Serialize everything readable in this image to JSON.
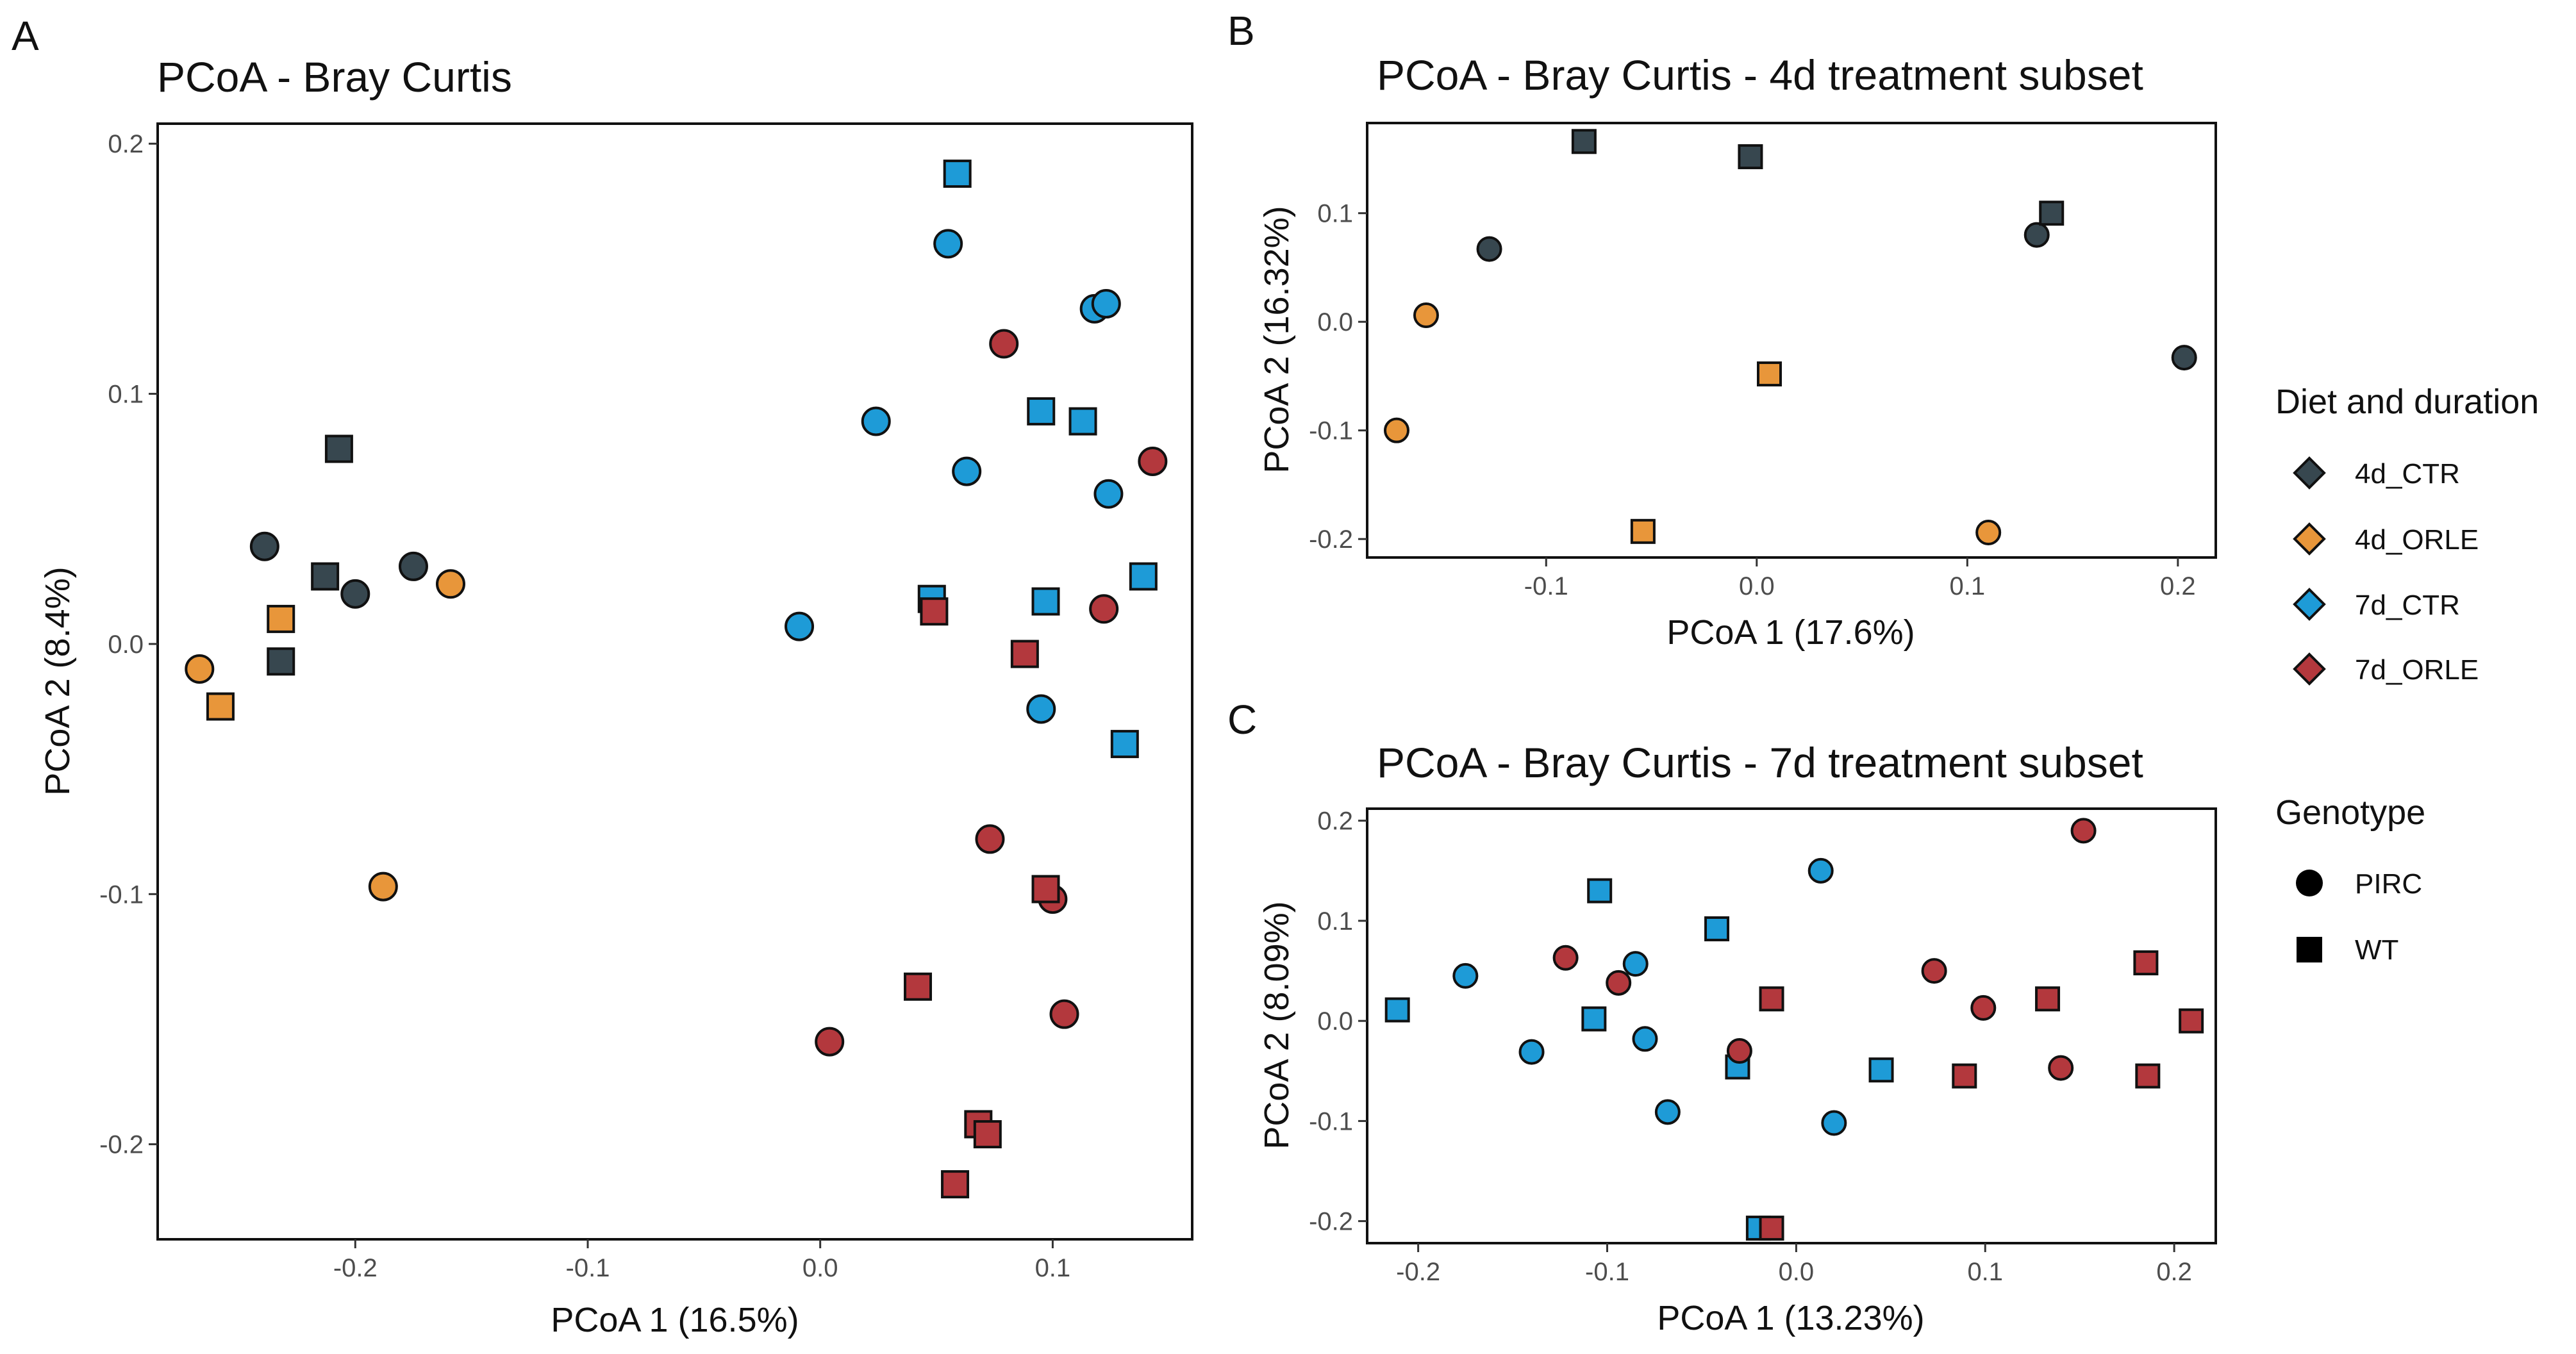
{
  "colors": {
    "4d_CTR": "#37474f",
    "4d_ORLE": "#e8963a",
    "7d_CTR": "#1e9bd7",
    "7d_ORLE": "#b3383d"
  },
  "legend": {
    "diet_title": "Diet and duration",
    "diet_items": [
      "4d_CTR",
      "4d_ORLE",
      "7d_CTR",
      "7d_ORLE"
    ],
    "genotype_title": "Genotype",
    "genotype_items": [
      "PIRC",
      "WT"
    ]
  },
  "chart_data": [
    {
      "panel": "A",
      "type": "scatter",
      "title": "PCoA - Bray Curtis",
      "xlabel": "PCoA 1 (16.5%)",
      "ylabel": "PCoA 2 (8.4%)",
      "xlim": [
        -0.285,
        0.16
      ],
      "ylim": [
        -0.238,
        0.208
      ],
      "xticks": [
        -0.2,
        -0.1,
        0.0,
        0.1
      ],
      "xtick_labels": [
        "-0.2",
        "-0.1",
        "0.0",
        "0.1"
      ],
      "yticks": [
        -0.2,
        -0.1,
        0.0,
        0.1,
        0.2
      ],
      "ytick_labels": [
        "-0.2",
        "-0.1",
        "0.0",
        "0.1",
        "0.2"
      ],
      "points": [
        {
          "x": -0.239,
          "y": 0.039,
          "group": "4d_CTR",
          "genotype": "PIRC"
        },
        {
          "x": -0.2,
          "y": 0.02,
          "group": "4d_CTR",
          "genotype": "PIRC"
        },
        {
          "x": -0.175,
          "y": 0.031,
          "group": "4d_CTR",
          "genotype": "PIRC"
        },
        {
          "x": -0.207,
          "y": 0.078,
          "group": "4d_CTR",
          "genotype": "WT"
        },
        {
          "x": -0.213,
          "y": 0.027,
          "group": "4d_CTR",
          "genotype": "WT"
        },
        {
          "x": -0.232,
          "y": -0.007,
          "group": "4d_CTR",
          "genotype": "WT"
        },
        {
          "x": -0.267,
          "y": -0.01,
          "group": "4d_ORLE",
          "genotype": "PIRC"
        },
        {
          "x": -0.159,
          "y": 0.024,
          "group": "4d_ORLE",
          "genotype": "PIRC"
        },
        {
          "x": -0.188,
          "y": -0.097,
          "group": "4d_ORLE",
          "genotype": "PIRC"
        },
        {
          "x": -0.232,
          "y": 0.01,
          "group": "4d_ORLE",
          "genotype": "WT"
        },
        {
          "x": -0.258,
          "y": -0.025,
          "group": "4d_ORLE",
          "genotype": "WT"
        },
        {
          "x": 0.055,
          "y": 0.16,
          "group": "7d_CTR",
          "genotype": "PIRC"
        },
        {
          "x": 0.118,
          "y": 0.134,
          "group": "7d_CTR",
          "genotype": "PIRC"
        },
        {
          "x": 0.123,
          "y": 0.136,
          "group": "7d_CTR",
          "genotype": "PIRC"
        },
        {
          "x": 0.024,
          "y": 0.089,
          "group": "7d_CTR",
          "genotype": "PIRC"
        },
        {
          "x": 0.063,
          "y": 0.069,
          "group": "7d_CTR",
          "genotype": "PIRC"
        },
        {
          "x": 0.124,
          "y": 0.06,
          "group": "7d_CTR",
          "genotype": "PIRC"
        },
        {
          "x": -0.009,
          "y": 0.007,
          "group": "7d_CTR",
          "genotype": "PIRC"
        },
        {
          "x": 0.095,
          "y": -0.026,
          "group": "7d_CTR",
          "genotype": "PIRC"
        },
        {
          "x": 0.059,
          "y": 0.188,
          "group": "7d_CTR",
          "genotype": "WT"
        },
        {
          "x": 0.095,
          "y": 0.093,
          "group": "7d_CTR",
          "genotype": "WT"
        },
        {
          "x": 0.113,
          "y": 0.089,
          "group": "7d_CTR",
          "genotype": "WT"
        },
        {
          "x": 0.048,
          "y": 0.018,
          "group": "7d_CTR",
          "genotype": "WT"
        },
        {
          "x": 0.097,
          "y": 0.017,
          "group": "7d_CTR",
          "genotype": "WT"
        },
        {
          "x": 0.139,
          "y": 0.027,
          "group": "7d_CTR",
          "genotype": "WT"
        },
        {
          "x": 0.131,
          "y": -0.04,
          "group": "7d_CTR",
          "genotype": "WT"
        },
        {
          "x": 0.079,
          "y": 0.12,
          "group": "7d_ORLE",
          "genotype": "PIRC"
        },
        {
          "x": 0.143,
          "y": 0.073,
          "group": "7d_ORLE",
          "genotype": "PIRC"
        },
        {
          "x": 0.122,
          "y": 0.014,
          "group": "7d_ORLE",
          "genotype": "PIRC"
        },
        {
          "x": 0.073,
          "y": -0.078,
          "group": "7d_ORLE",
          "genotype": "PIRC"
        },
        {
          "x": 0.1,
          "y": -0.102,
          "group": "7d_ORLE",
          "genotype": "PIRC"
        },
        {
          "x": 0.105,
          "y": -0.148,
          "group": "7d_ORLE",
          "genotype": "PIRC"
        },
        {
          "x": 0.004,
          "y": -0.159,
          "group": "7d_ORLE",
          "genotype": "PIRC"
        },
        {
          "x": 0.049,
          "y": 0.013,
          "group": "7d_ORLE",
          "genotype": "WT"
        },
        {
          "x": 0.088,
          "y": -0.004,
          "group": "7d_ORLE",
          "genotype": "WT"
        },
        {
          "x": 0.097,
          "y": -0.098,
          "group": "7d_ORLE",
          "genotype": "WT"
        },
        {
          "x": 0.042,
          "y": -0.137,
          "group": "7d_ORLE",
          "genotype": "WT"
        },
        {
          "x": 0.068,
          "y": -0.192,
          "group": "7d_ORLE",
          "genotype": "WT"
        },
        {
          "x": 0.072,
          "y": -0.196,
          "group": "7d_ORLE",
          "genotype": "WT"
        },
        {
          "x": 0.058,
          "y": -0.216,
          "group": "7d_ORLE",
          "genotype": "WT"
        }
      ]
    },
    {
      "panel": "B",
      "type": "scatter",
      "title": "PCoA - Bray Curtis - 4d treatment subset",
      "xlabel": "PCoA 1 (17.6%)",
      "ylabel": "PCoA 2 (16.32%)",
      "xlim": [
        -0.185,
        0.218
      ],
      "ylim": [
        -0.217,
        0.183
      ],
      "xticks": [
        -0.1,
        0.0,
        0.1,
        0.2
      ],
      "xtick_labels": [
        "-0.1",
        "0.0",
        "0.1",
        "0.2"
      ],
      "yticks": [
        -0.2,
        -0.1,
        0.0,
        0.1
      ],
      "ytick_labels": [
        "-0.2",
        "-0.1",
        "0.0",
        "0.1"
      ],
      "points": [
        {
          "x": -0.127,
          "y": 0.067,
          "group": "4d_CTR",
          "genotype": "PIRC"
        },
        {
          "x": 0.133,
          "y": 0.08,
          "group": "4d_CTR",
          "genotype": "PIRC"
        },
        {
          "x": 0.203,
          "y": -0.033,
          "group": "4d_CTR",
          "genotype": "PIRC"
        },
        {
          "x": -0.082,
          "y": 0.166,
          "group": "4d_CTR",
          "genotype": "WT"
        },
        {
          "x": -0.003,
          "y": 0.152,
          "group": "4d_CTR",
          "genotype": "WT"
        },
        {
          "x": 0.14,
          "y": 0.1,
          "group": "4d_CTR",
          "genotype": "WT"
        },
        {
          "x": -0.157,
          "y": 0.006,
          "group": "4d_ORLE",
          "genotype": "PIRC"
        },
        {
          "x": -0.171,
          "y": -0.1,
          "group": "4d_ORLE",
          "genotype": "PIRC"
        },
        {
          "x": 0.11,
          "y": -0.194,
          "group": "4d_ORLE",
          "genotype": "PIRC"
        },
        {
          "x": 0.006,
          "y": -0.048,
          "group": "4d_ORLE",
          "genotype": "WT"
        },
        {
          "x": -0.054,
          "y": -0.193,
          "group": "4d_ORLE",
          "genotype": "WT"
        }
      ]
    },
    {
      "panel": "C",
      "type": "scatter",
      "title": "PCoA - Bray Curtis - 7d treatment subset",
      "xlabel": "PCoA 1 (13.23%)",
      "ylabel": "PCoA 2 (8.09%)",
      "xlim": [
        -0.227,
        0.222
      ],
      "ylim": [
        -0.222,
        0.212
      ],
      "xticks": [
        -0.2,
        -0.1,
        0.0,
        0.1,
        0.2
      ],
      "xtick_labels": [
        "-0.2",
        "-0.1",
        "0.0",
        "0.1",
        "0.2"
      ],
      "yticks": [
        -0.2,
        -0.1,
        0.0,
        0.1,
        0.2
      ],
      "ytick_labels": [
        "-0.2",
        "-0.1",
        "0.0",
        "0.1",
        "0.2"
      ],
      "points": [
        {
          "x": -0.175,
          "y": 0.045,
          "group": "7d_CTR",
          "genotype": "PIRC"
        },
        {
          "x": -0.14,
          "y": -0.031,
          "group": "7d_CTR",
          "genotype": "PIRC"
        },
        {
          "x": -0.085,
          "y": 0.057,
          "group": "7d_CTR",
          "genotype": "PIRC"
        },
        {
          "x": -0.08,
          "y": -0.018,
          "group": "7d_CTR",
          "genotype": "PIRC"
        },
        {
          "x": -0.068,
          "y": -0.091,
          "group": "7d_CTR",
          "genotype": "PIRC"
        },
        {
          "x": 0.013,
          "y": 0.15,
          "group": "7d_CTR",
          "genotype": "PIRC"
        },
        {
          "x": 0.02,
          "y": -0.102,
          "group": "7d_CTR",
          "genotype": "PIRC"
        },
        {
          "x": -0.211,
          "y": 0.011,
          "group": "7d_CTR",
          "genotype": "WT"
        },
        {
          "x": -0.104,
          "y": 0.13,
          "group": "7d_CTR",
          "genotype": "WT"
        },
        {
          "x": -0.107,
          "y": 0.002,
          "group": "7d_CTR",
          "genotype": "WT"
        },
        {
          "x": -0.042,
          "y": 0.092,
          "group": "7d_CTR",
          "genotype": "WT"
        },
        {
          "x": -0.031,
          "y": -0.046,
          "group": "7d_CTR",
          "genotype": "WT"
        },
        {
          "x": 0.045,
          "y": -0.049,
          "group": "7d_CTR",
          "genotype": "WT"
        },
        {
          "x": -0.02,
          "y": -0.207,
          "group": "7d_CTR",
          "genotype": "WT"
        },
        {
          "x": -0.122,
          "y": 0.063,
          "group": "7d_ORLE",
          "genotype": "PIRC"
        },
        {
          "x": -0.094,
          "y": 0.038,
          "group": "7d_ORLE",
          "genotype": "PIRC"
        },
        {
          "x": -0.03,
          "y": -0.03,
          "group": "7d_ORLE",
          "genotype": "PIRC"
        },
        {
          "x": 0.073,
          "y": 0.05,
          "group": "7d_ORLE",
          "genotype": "PIRC"
        },
        {
          "x": 0.099,
          "y": 0.013,
          "group": "7d_ORLE",
          "genotype": "PIRC"
        },
        {
          "x": 0.14,
          "y": -0.047,
          "group": "7d_ORLE",
          "genotype": "PIRC"
        },
        {
          "x": 0.152,
          "y": 0.19,
          "group": "7d_ORLE",
          "genotype": "PIRC"
        },
        {
          "x": -0.013,
          "y": 0.022,
          "group": "7d_ORLE",
          "genotype": "WT"
        },
        {
          "x": 0.089,
          "y": -0.055,
          "group": "7d_ORLE",
          "genotype": "WT"
        },
        {
          "x": 0.133,
          "y": 0.022,
          "group": "7d_ORLE",
          "genotype": "WT"
        },
        {
          "x": 0.185,
          "y": 0.058,
          "group": "7d_ORLE",
          "genotype": "WT"
        },
        {
          "x": 0.209,
          "y": 0.0,
          "group": "7d_ORLE",
          "genotype": "WT"
        },
        {
          "x": 0.186,
          "y": -0.055,
          "group": "7d_ORLE",
          "genotype": "WT"
        },
        {
          "x": -0.013,
          "y": -0.207,
          "group": "7d_ORLE",
          "genotype": "WT"
        }
      ]
    }
  ]
}
